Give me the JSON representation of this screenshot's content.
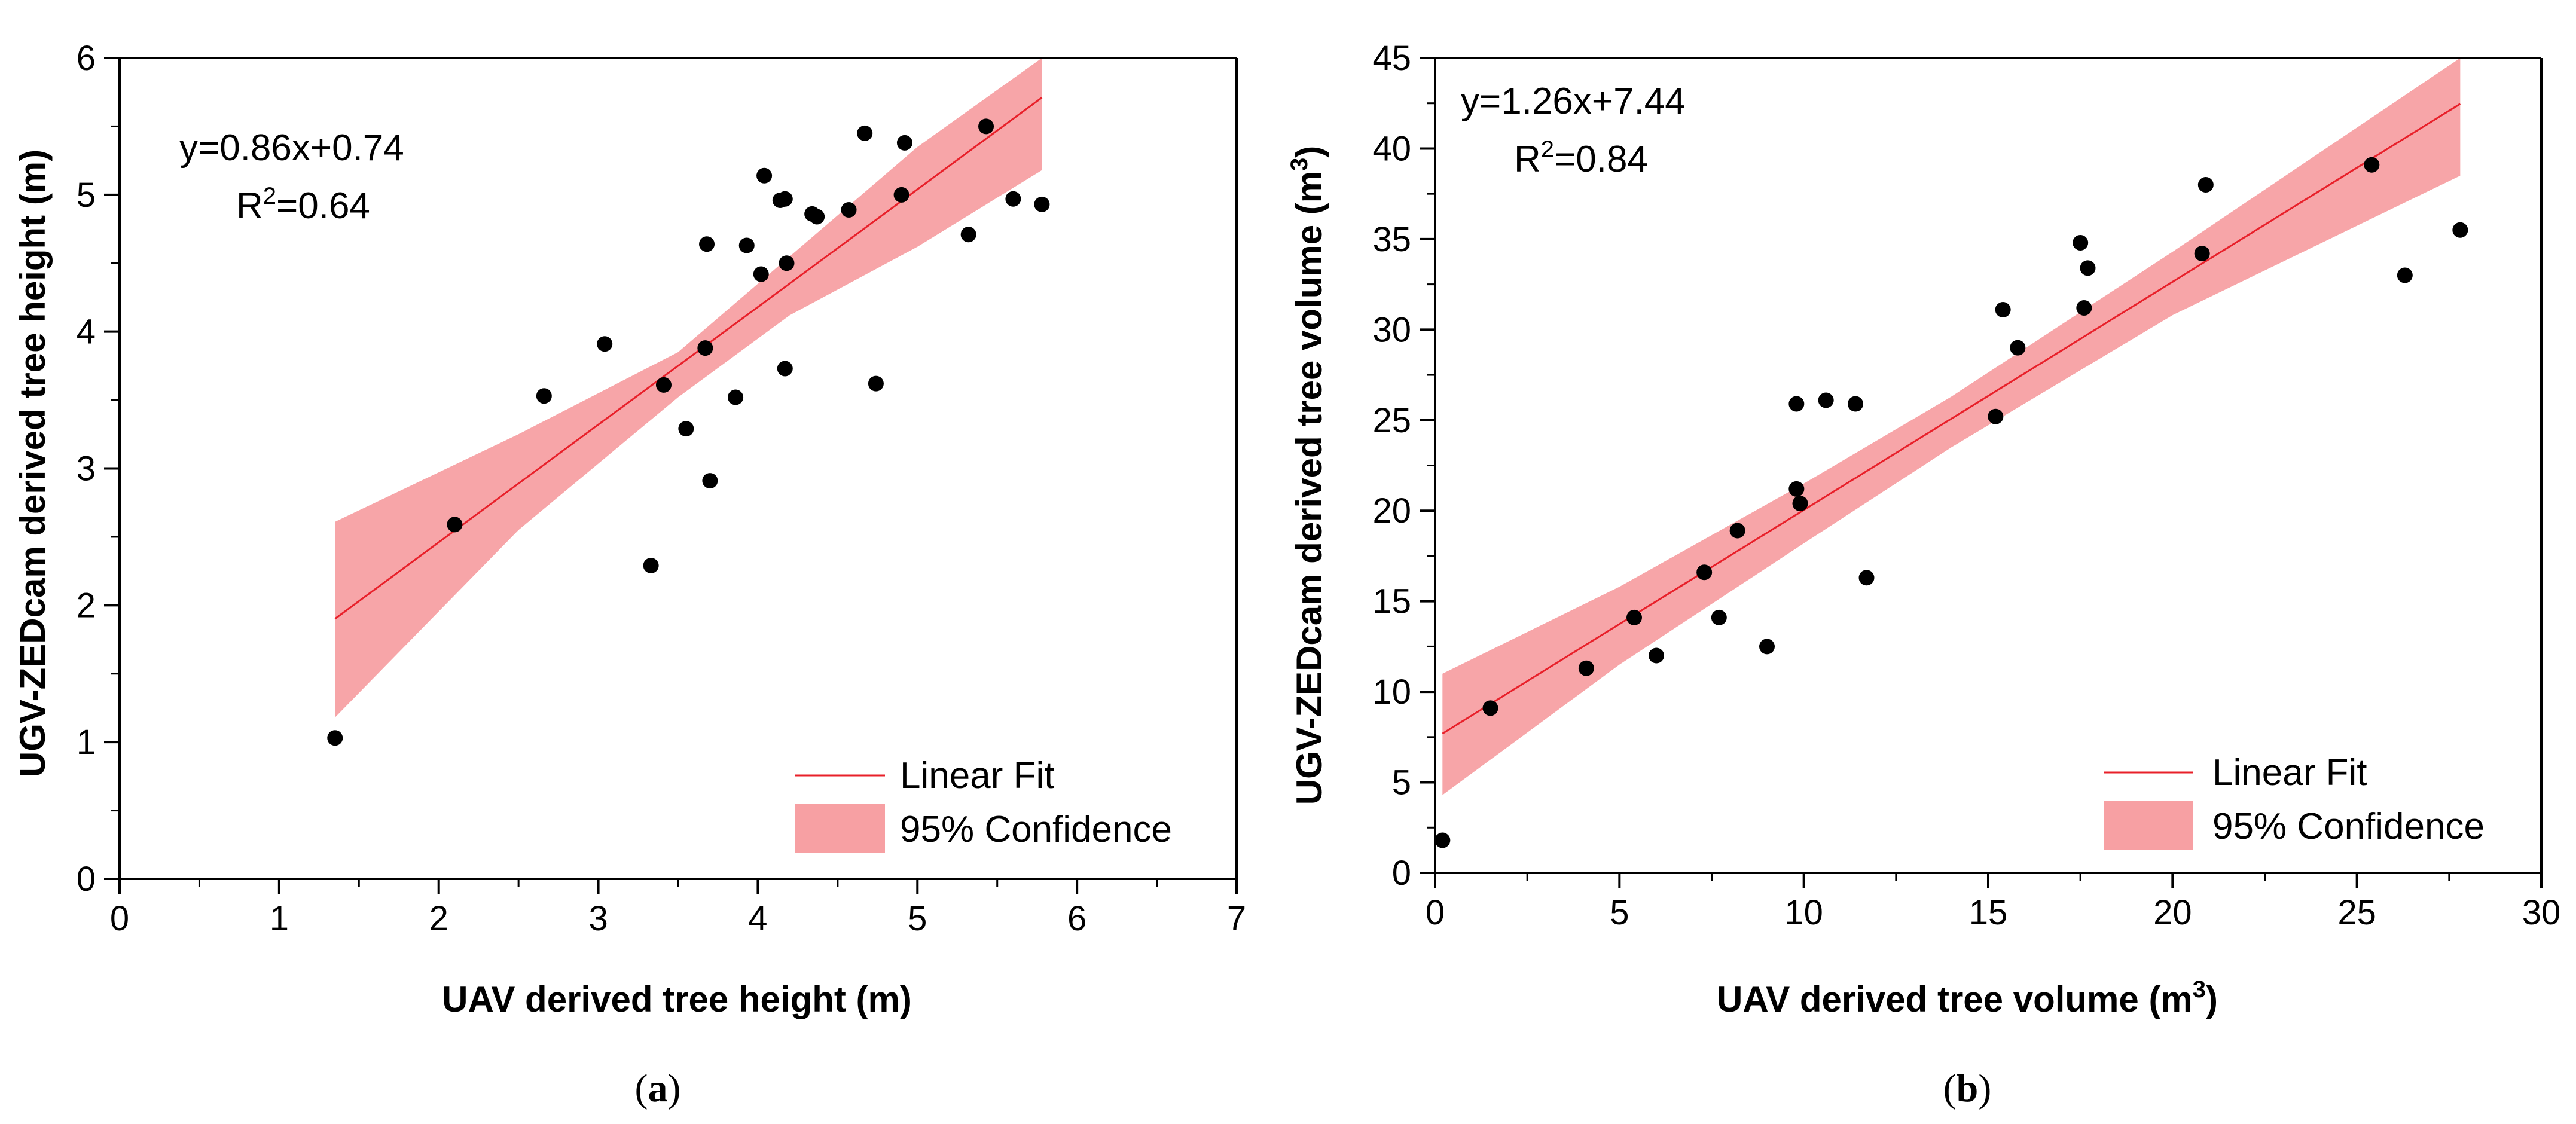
{
  "colors": {
    "fit": "#e8202a",
    "band": "#f7a0a3",
    "point": "#000000"
  },
  "chart_data": [
    {
      "type": "scatter",
      "caption_letter": "a",
      "xlabel": "UAV derived tree height (m)",
      "ylabel": "UGV-ZEDcam derived tree height (m)",
      "xlim": [
        0,
        7
      ],
      "ylim": [
        0,
        6
      ],
      "xticks": [
        0,
        1,
        2,
        3,
        4,
        5,
        6,
        7
      ],
      "yticks": [
        0,
        1,
        2,
        3,
        4,
        5,
        6
      ],
      "equation": "y=0.86x+0.74",
      "r2_prefix": "R",
      "r2_sup": "2",
      "r2_value": "=0.64",
      "fit": {
        "slope": 0.86,
        "intercept": 0.74,
        "x_range": [
          1.35,
          5.78
        ]
      },
      "confidence_band": [
        {
          "x": 1.35,
          "lower": 1.18,
          "upper": 2.61
        },
        {
          "x": 2.5,
          "lower": 2.55,
          "upper": 3.25
        },
        {
          "x": 3.5,
          "lower": 3.52,
          "upper": 3.85
        },
        {
          "x": 4.2,
          "lower": 4.12,
          "upper": 4.55
        },
        {
          "x": 5.0,
          "lower": 4.62,
          "upper": 5.35
        },
        {
          "x": 5.78,
          "lower": 5.18,
          "upper": 6.0
        }
      ],
      "points": [
        [
          1.35,
          1.03
        ],
        [
          2.1,
          2.59
        ],
        [
          2.66,
          3.53
        ],
        [
          3.04,
          3.91
        ],
        [
          3.33,
          2.29
        ],
        [
          3.41,
          3.61
        ],
        [
          3.55,
          3.29
        ],
        [
          3.67,
          3.88
        ],
        [
          3.68,
          4.64
        ],
        [
          3.7,
          2.91
        ],
        [
          3.86,
          3.52
        ],
        [
          3.93,
          4.63
        ],
        [
          4.02,
          4.42
        ],
        [
          4.04,
          5.14
        ],
        [
          4.14,
          4.96
        ],
        [
          4.17,
          4.97
        ],
        [
          4.17,
          3.73
        ],
        [
          4.18,
          4.5
        ],
        [
          4.34,
          4.86
        ],
        [
          4.37,
          4.84
        ],
        [
          4.57,
          4.89
        ],
        [
          4.67,
          5.45
        ],
        [
          4.74,
          3.62
        ],
        [
          4.9,
          5.0
        ],
        [
          4.92,
          5.38
        ],
        [
          5.32,
          4.71
        ],
        [
          5.43,
          5.5
        ],
        [
          5.6,
          4.97
        ],
        [
          5.78,
          4.93
        ]
      ],
      "legend": {
        "fit_label": "Linear Fit",
        "band_label": "95% Confidence",
        "placement": "bottom-right"
      }
    },
    {
      "type": "scatter",
      "caption_letter": "b",
      "xlabel": "UAV derived tree volume (m",
      "xlabel_sup": "3",
      "xlabel_end": ")",
      "ylabel": "UGV-ZEDcam derived tree volume (m",
      "ylabel_sup": "3",
      "ylabel_end": ")",
      "xlim": [
        0,
        30
      ],
      "ylim": [
        0,
        45
      ],
      "xticks": [
        0,
        5,
        10,
        15,
        20,
        25,
        30
      ],
      "yticks": [
        0,
        5,
        10,
        15,
        20,
        25,
        30,
        35,
        40,
        45
      ],
      "equation": "y=1.26x+7.44",
      "r2_prefix": "R",
      "r2_sup": "2",
      "r2_value": "=0.84",
      "fit": {
        "slope": 1.26,
        "intercept": 7.44,
        "x_range": [
          0.2,
          27.8
        ]
      },
      "confidence_band": [
        {
          "x": 0.2,
          "lower": 4.3,
          "upper": 11.0
        },
        {
          "x": 5,
          "lower": 11.5,
          "upper": 15.8
        },
        {
          "x": 10,
          "lower": 18.2,
          "upper": 21.5
        },
        {
          "x": 14,
          "lower": 23.5,
          "upper": 26.3
        },
        {
          "x": 20,
          "lower": 30.8,
          "upper": 34.3
        },
        {
          "x": 27.8,
          "lower": 38.5,
          "upper": 45.0
        }
      ],
      "points": [
        [
          0.2,
          1.8
        ],
        [
          1.5,
          9.1
        ],
        [
          4.1,
          11.3
        ],
        [
          5.4,
          14.1
        ],
        [
          6.0,
          12.0
        ],
        [
          7.3,
          16.6
        ],
        [
          7.7,
          14.1
        ],
        [
          8.2,
          18.9
        ],
        [
          9.0,
          12.5
        ],
        [
          9.8,
          25.9
        ],
        [
          9.8,
          21.2
        ],
        [
          9.9,
          20.4
        ],
        [
          10.6,
          26.1
        ],
        [
          11.4,
          25.9
        ],
        [
          11.7,
          16.3
        ],
        [
          15.2,
          25.2
        ],
        [
          15.4,
          31.1
        ],
        [
          15.8,
          29.0
        ],
        [
          17.5,
          34.8
        ],
        [
          17.6,
          31.2
        ],
        [
          17.7,
          33.4
        ],
        [
          20.8,
          34.2
        ],
        [
          20.9,
          38.0
        ],
        [
          25.4,
          39.1
        ],
        [
          26.3,
          33.0
        ],
        [
          27.8,
          35.5
        ]
      ],
      "legend": {
        "fit_label": "Linear Fit",
        "band_label": "95% Confidence",
        "placement": "bottom-right"
      }
    }
  ]
}
